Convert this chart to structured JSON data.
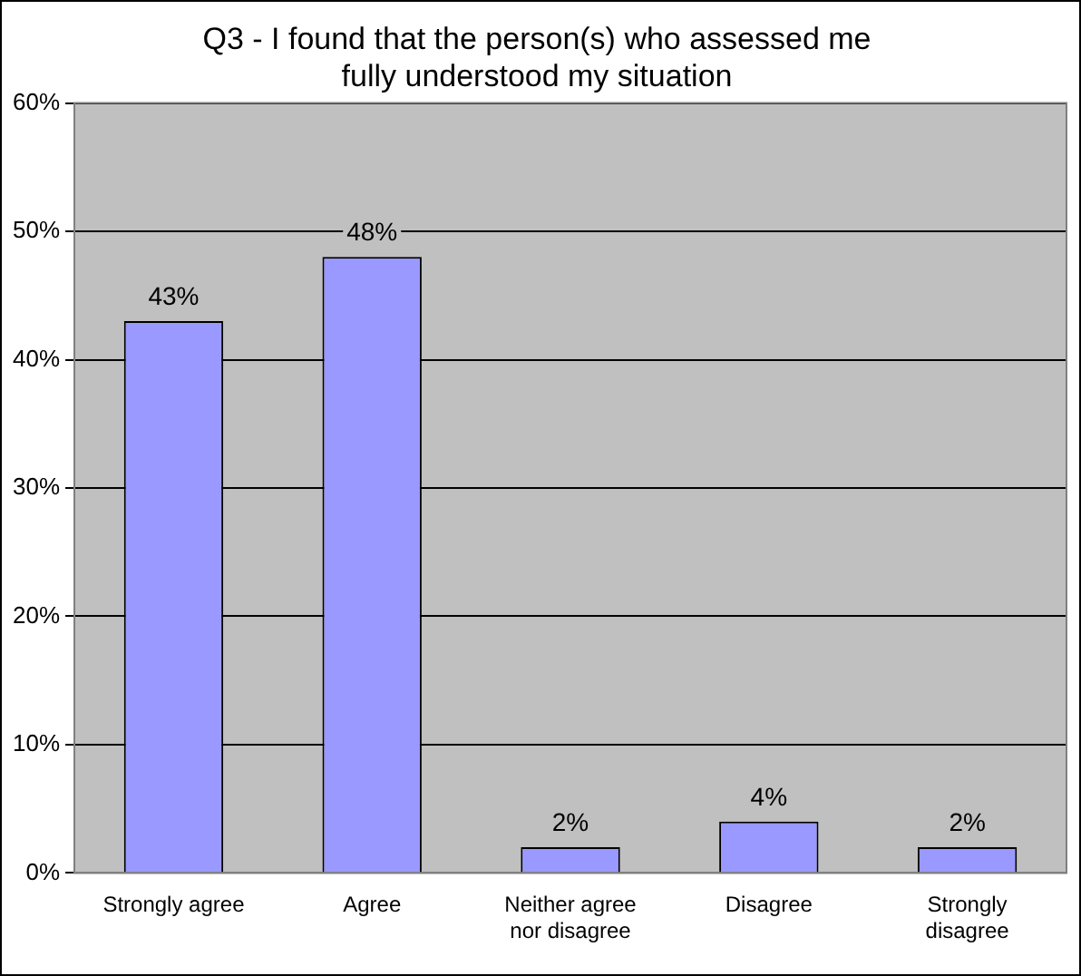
{
  "chart_data": {
    "type": "bar",
    "title": "Q3 - I found that the person(s) who assessed me fully understood my situation",
    "categories": [
      "Strongly agree",
      "Agree",
      "Neither agree nor disagree",
      "Disagree",
      "Strongly disagree"
    ],
    "values": [
      43,
      48,
      2,
      4,
      2
    ],
    "value_labels": [
      "43%",
      "48%",
      "2%",
      "4%",
      "2%"
    ],
    "color": "#9999ff",
    "ylim": [
      0,
      60
    ],
    "yticks": [
      {
        "value": 0,
        "label": "0%"
      },
      {
        "value": 10,
        "label": "10%"
      },
      {
        "value": 20,
        "label": "20%"
      },
      {
        "value": 30,
        "label": "30%"
      },
      {
        "value": 40,
        "label": "40%"
      },
      {
        "value": 50,
        "label": "50%"
      },
      {
        "value": 60,
        "label": "60%"
      }
    ],
    "grid": "y",
    "legend": false
  }
}
